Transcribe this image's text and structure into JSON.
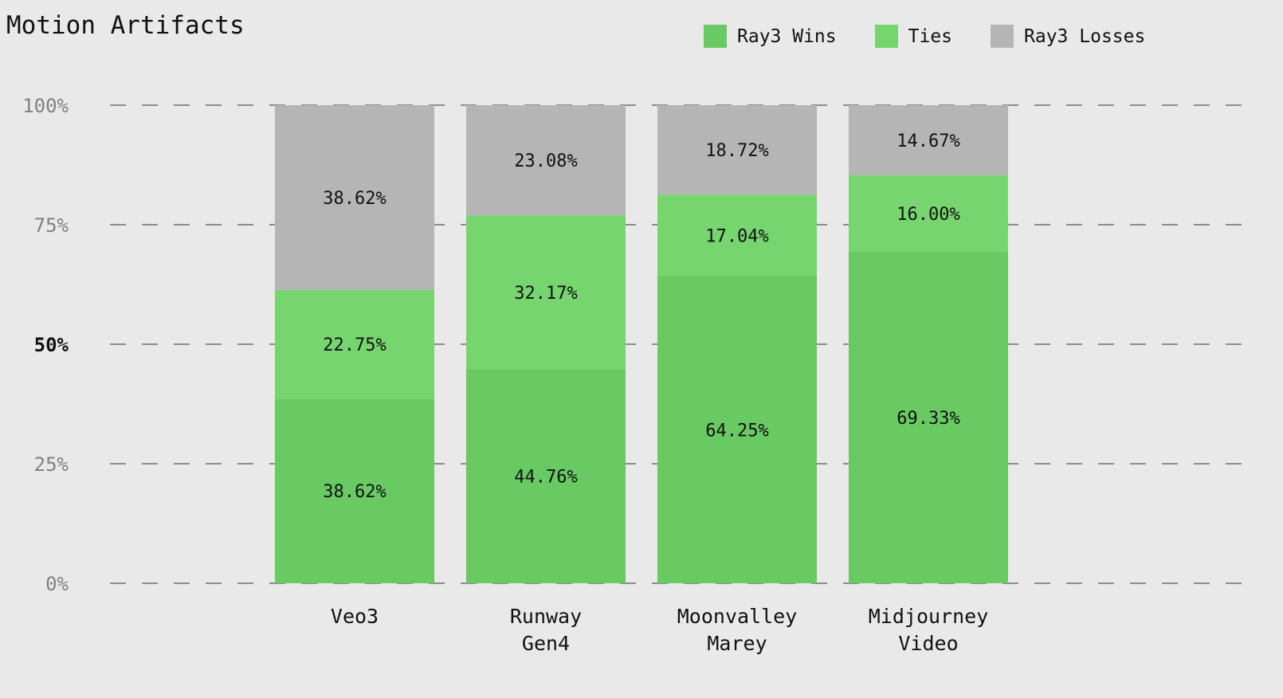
{
  "chart_data": {
    "type": "bar",
    "stacked": true,
    "title": "Motion Artifacts",
    "categories": [
      [
        "Veo3"
      ],
      [
        "Runway",
        "Gen4"
      ],
      [
        "Moonvalley",
        "Marey"
      ],
      [
        "Midjourney",
        "Video"
      ]
    ],
    "series": [
      {
        "name": "Ray3 Wins",
        "color": "#69c963",
        "values": [
          38.62,
          44.76,
          64.25,
          69.33
        ],
        "labels": [
          "38.62%",
          "44.76%",
          "64.25%",
          "69.33%"
        ]
      },
      {
        "name": "Ties",
        "color": "#77d570",
        "values": [
          22.75,
          32.17,
          17.04,
          16.0
        ],
        "labels": [
          "22.75%",
          "32.17%",
          "17.04%",
          "16.00%"
        ]
      },
      {
        "name": "Ray3 Losses",
        "color": "#b5b5b5",
        "values": [
          38.62,
          23.08,
          18.72,
          14.67
        ],
        "labels": [
          "38.62%",
          "23.08%",
          "18.72%",
          "14.67%"
        ]
      }
    ],
    "ylim": [
      0,
      100
    ],
    "yticks": [
      "0%",
      "25%",
      "50%",
      "75%",
      "100%"
    ],
    "yticks_bold": [
      "50%"
    ],
    "grid": "dashed horizontal",
    "legend": "top-right",
    "background": "#e9e9e9"
  }
}
